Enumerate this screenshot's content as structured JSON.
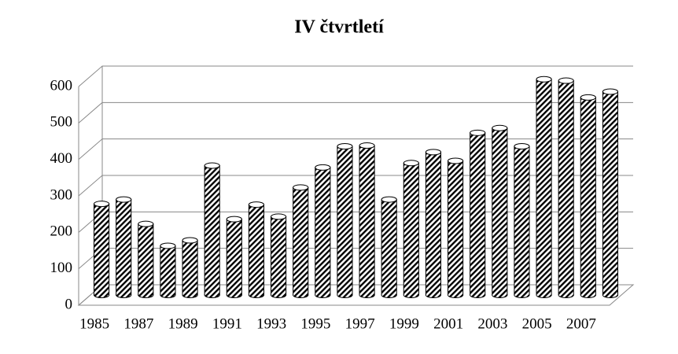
{
  "chart_data": {
    "type": "bar",
    "title": "IV čtvrtletí",
    "categories": [
      "1985",
      null,
      "1987",
      null,
      "1989",
      null,
      "1991",
      null,
      "1993",
      null,
      "1995",
      null,
      "1997",
      null,
      "1999",
      null,
      "2001",
      null,
      "2003",
      null,
      "2005",
      null,
      "2007",
      null
    ],
    "values": [
      250,
      262,
      195,
      135,
      150,
      355,
      208,
      248,
      215,
      295,
      350,
      408,
      410,
      262,
      362,
      392,
      368,
      445,
      458,
      408,
      592,
      588,
      542,
      558
    ],
    "color": "#000000",
    "ylim": [
      0,
      600
    ],
    "yticks": [
      0,
      100,
      200,
      300,
      400,
      500,
      600
    ],
    "grid": true
  }
}
